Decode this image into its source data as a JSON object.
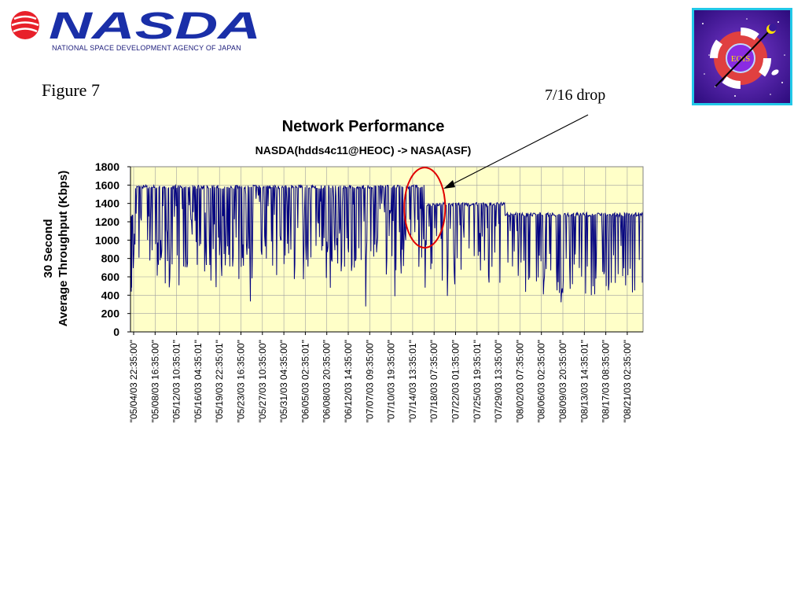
{
  "header": {
    "logo_text": "NASDA",
    "logo_tagline": "NATIONAL SPACE DEVELOPMENT AGENCY OF JAPAN",
    "figure_label": "Figure  7",
    "annotation": "7/16  drop",
    "badge_text": "EOIS",
    "colors": {
      "nasda_blue": "#1a2fa8",
      "nasda_red": "#e8202a",
      "badge_border": "#22c8e8"
    }
  },
  "chart_data": {
    "type": "line",
    "title": "Network Performance",
    "subtitle": "NASDA(hdds4c11@HEOC) -> NASA(ASF)",
    "ylabel_line1": "30 Second",
    "ylabel_line2": "Average Throughput (Kbps)",
    "ylim": [
      0,
      1800
    ],
    "yticks": [
      "0",
      "200",
      "400",
      "600",
      "800",
      "1000",
      "1200",
      "1400",
      "1600",
      "1800"
    ],
    "grid": true,
    "legend": "none",
    "series_color": "#00007f",
    "plot_background": "#ffffc8",
    "xtick_labels": [
      "\"05/04/03 22:35:00\"",
      "\"05/08/03 16:35:00\"",
      "\"05/12/03 10:35:01\"",
      "\"05/16/03 04:35:01\"",
      "\"05/19/03 22:35:01\"",
      "\"05/23/03 16:35:00\"",
      "\"05/27/03 10:35:00\"",
      "\"05/31/03 04:35:00\"",
      "\"06/05/03 02:35:01\"",
      "\"06/08/03 20:35:00\"",
      "\"06/12/03 14:35:00\"",
      "\"07/07/03 09:35:00\"",
      "\"07/10/03 19:35:00\"",
      "\"07/14/03 13:35:01\"",
      "\"07/18/03 07:35:00\"",
      "\"07/22/03 01:35:00\"",
      "\"07/25/03 19:35:01\"",
      "\"07/29/03 13:35:00\"",
      "\"08/02/03 07:35:00\"",
      "\"08/06/03 02:35:00\"",
      "\"08/09/03 20:35:00\"",
      "\"08/13/03 14:35:01\"",
      "\"08/17/03 08:35:00\"",
      "\"08/21/03 02:35:00\""
    ],
    "levels": [
      {
        "from_tick": 0,
        "to_tick": 13.6,
        "baseline": 1600
      },
      {
        "from_tick": 13.6,
        "to_tick": 17.3,
        "baseline": 1410
      },
      {
        "from_tick": 17.3,
        "to_tick": 23.8,
        "baseline": 1300
      }
    ],
    "drop_annotation": {
      "tick": 13.6,
      "label": "7/16  drop"
    }
  }
}
